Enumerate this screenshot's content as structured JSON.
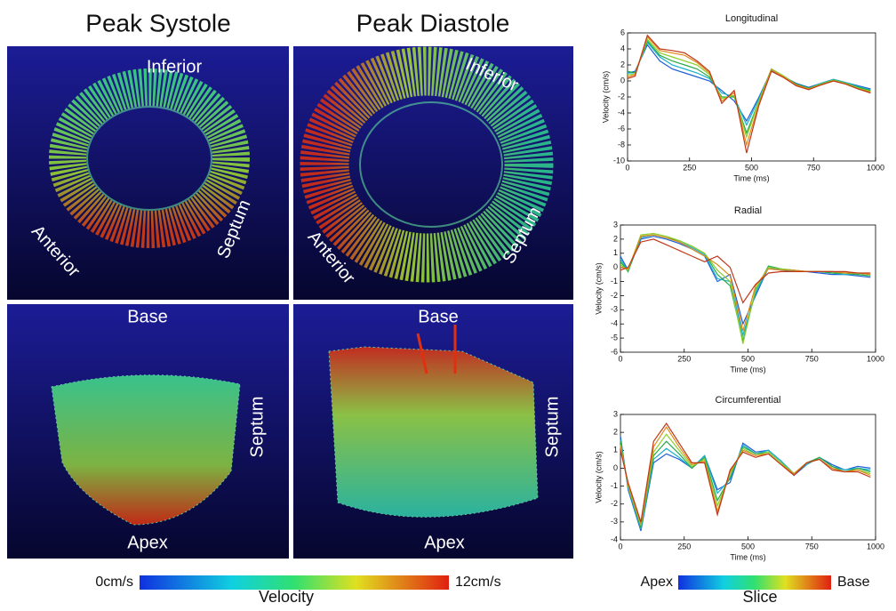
{
  "panels": {
    "systole_title": "Peak Systole",
    "diastole_title": "Peak Diastole",
    "systole_short": {
      "inferior": "Inferior",
      "anterior": "Anterior",
      "septum": "Septum"
    },
    "diastole_short": {
      "inferior": "Inferior",
      "anterior": "Anterior",
      "septum": "Septum"
    },
    "systole_long": {
      "base": "Base",
      "apex": "Apex",
      "septum": "Septum"
    },
    "diastole_long": {
      "base": "Base",
      "apex": "Apex",
      "septum": "Septum"
    }
  },
  "colorbars": {
    "velocity_min": "0cm/s",
    "velocity_max": "12cm/s",
    "velocity_title": "Velocity",
    "slice_min": "Apex",
    "slice_max": "Base",
    "slice_title": "Slice"
  },
  "chart_data": [
    {
      "type": "line",
      "title": "Longitudinal",
      "x_label": "Time (ms)",
      "y_label": "Velocity (cm/s)",
      "x": [
        0,
        30,
        80,
        130,
        180,
        230,
        280,
        330,
        380,
        430,
        480,
        530,
        580,
        630,
        680,
        730,
        780,
        830,
        880,
        930,
        980
      ],
      "xlim": [
        0,
        1000
      ],
      "xticks": [
        0,
        250,
        500,
        750,
        1000
      ],
      "ylim": [
        -10,
        6
      ],
      "yticks": [
        -10,
        -8,
        -6,
        -4,
        -2,
        0,
        2,
        4,
        6
      ],
      "series": [
        {
          "color": "#1f5fd6",
          "values": [
            1.0,
            1.2,
            4.5,
            2.5,
            1.5,
            1.0,
            0.5,
            0.0,
            -1.2,
            -2.5,
            -5.0,
            -2.0,
            1.3,
            0.5,
            -0.3,
            -0.8,
            -0.3,
            0.2,
            -0.2,
            -0.6,
            -1.0
          ]
        },
        {
          "color": "#18b0c8",
          "values": [
            1.0,
            1.0,
            4.8,
            3.0,
            2.0,
            1.5,
            1.0,
            0.3,
            -1.5,
            -2.0,
            -5.5,
            -2.2,
            1.4,
            0.5,
            -0.4,
            -0.9,
            -0.3,
            0.2,
            -0.2,
            -0.7,
            -1.1
          ]
        },
        {
          "color": "#2aa84a",
          "values": [
            1.2,
            1.0,
            5.0,
            3.2,
            2.5,
            2.0,
            1.5,
            0.5,
            -2.0,
            -2.0,
            -6.5,
            -2.5,
            1.5,
            0.6,
            -0.4,
            -0.9,
            -0.4,
            0.1,
            -0.3,
            -0.8,
            -1.2
          ]
        },
        {
          "color": "#8ccf2a",
          "values": [
            0.8,
            0.8,
            5.2,
            3.5,
            3.0,
            2.5,
            2.0,
            0.8,
            -2.2,
            -1.8,
            -7.0,
            -2.5,
            1.5,
            0.6,
            -0.5,
            -1.0,
            -0.4,
            0.1,
            -0.3,
            -0.9,
            -1.3
          ]
        },
        {
          "color": "#e08a1a",
          "values": [
            0.5,
            0.8,
            5.5,
            3.8,
            3.5,
            3.2,
            2.3,
            1.0,
            -2.5,
            -1.5,
            -8.0,
            -2.8,
            1.4,
            0.5,
            -0.5,
            -1.0,
            -0.5,
            0.0,
            -0.4,
            -1.0,
            -1.4
          ]
        },
        {
          "color": "#c0381a",
          "values": [
            0.3,
            0.6,
            5.7,
            4.0,
            3.8,
            3.5,
            2.5,
            1.2,
            -2.8,
            -1.2,
            -9.0,
            -3.0,
            1.2,
            0.4,
            -0.6,
            -1.1,
            -0.5,
            0.0,
            -0.4,
            -1.0,
            -1.5
          ]
        }
      ]
    },
    {
      "type": "line",
      "title": "Radial",
      "x_label": "Time (ms)",
      "y_label": "Velocity (cm/s)",
      "x": [
        0,
        30,
        80,
        130,
        180,
        230,
        280,
        330,
        380,
        430,
        480,
        530,
        580,
        630,
        680,
        730,
        780,
        830,
        880,
        930,
        980
      ],
      "xlim": [
        0,
        1000
      ],
      "xticks": [
        0,
        250,
        500,
        750,
        1000
      ],
      "ylim": [
        -6,
        3
      ],
      "yticks": [
        -6,
        -5,
        -4,
        -3,
        -2,
        -1,
        0,
        1,
        2,
        3
      ],
      "series": [
        {
          "color": "#1f5fd6",
          "values": [
            0.8,
            -0.2,
            2.0,
            2.2,
            2.0,
            1.7,
            1.3,
            0.8,
            -1.0,
            -0.5,
            -4.0,
            -2.0,
            0.0,
            -0.2,
            -0.3,
            -0.3,
            -0.4,
            -0.5,
            -0.5,
            -0.6,
            -0.7
          ]
        },
        {
          "color": "#18b0c8",
          "values": [
            0.6,
            -0.3,
            2.1,
            2.3,
            2.1,
            1.8,
            1.4,
            0.9,
            -0.8,
            -1.0,
            -4.8,
            -1.8,
            0.0,
            -0.1,
            -0.3,
            -0.3,
            -0.3,
            -0.4,
            -0.5,
            -0.5,
            -0.6
          ]
        },
        {
          "color": "#2aa84a",
          "values": [
            0.4,
            -0.3,
            2.2,
            2.3,
            2.1,
            1.9,
            1.5,
            1.0,
            -0.5,
            -1.3,
            -5.2,
            -1.6,
            0.1,
            -0.1,
            -0.2,
            -0.3,
            -0.3,
            -0.4,
            -0.4,
            -0.5,
            -0.6
          ]
        },
        {
          "color": "#8ccf2a",
          "values": [
            0.2,
            -0.2,
            2.3,
            2.4,
            2.2,
            1.9,
            1.5,
            1.0,
            -0.2,
            -1.0,
            -5.4,
            -1.5,
            0.0,
            -0.1,
            -0.2,
            -0.3,
            -0.3,
            -0.3,
            -0.4,
            -0.4,
            -0.5
          ]
        },
        {
          "color": "#e08a1a",
          "values": [
            0.0,
            -0.1,
            2.2,
            2.3,
            2.1,
            1.8,
            1.3,
            0.8,
            0.2,
            -0.6,
            -4.5,
            -1.3,
            -0.1,
            -0.2,
            -0.2,
            -0.3,
            -0.3,
            -0.3,
            -0.4,
            -0.4,
            -0.5
          ]
        },
        {
          "color": "#c0381a",
          "values": [
            -0.2,
            0.0,
            1.8,
            2.0,
            1.6,
            1.2,
            0.8,
            0.4,
            0.8,
            0.0,
            -2.5,
            -1.2,
            -0.4,
            -0.3,
            -0.3,
            -0.3,
            -0.3,
            -0.3,
            -0.3,
            -0.4,
            -0.4
          ]
        }
      ]
    },
    {
      "type": "line",
      "title": "Circumferential",
      "x_label": "Time (ms)",
      "y_label": "Velocity (cm/s)",
      "x": [
        0,
        30,
        80,
        130,
        180,
        230,
        280,
        330,
        380,
        430,
        480,
        530,
        580,
        630,
        680,
        730,
        780,
        830,
        880,
        930,
        980
      ],
      "xlim": [
        0,
        1000
      ],
      "xticks": [
        0,
        250,
        500,
        750,
        1000
      ],
      "ylim": [
        -4,
        3
      ],
      "yticks": [
        -4,
        -3,
        -2,
        -1,
        0,
        1,
        2,
        3
      ],
      "series": [
        {
          "color": "#1f5fd6",
          "values": [
            1.8,
            -1.2,
            -3.5,
            0.3,
            0.8,
            0.5,
            0.0,
            0.7,
            -1.2,
            -0.8,
            1.4,
            0.9,
            1.0,
            0.4,
            -0.4,
            0.2,
            0.6,
            0.2,
            -0.1,
            0.1,
            0.0
          ]
        },
        {
          "color": "#18b0c8",
          "values": [
            1.6,
            -1.1,
            -3.4,
            0.5,
            1.1,
            0.6,
            0.0,
            0.7,
            -1.4,
            -0.6,
            1.3,
            0.8,
            1.0,
            0.4,
            -0.3,
            0.2,
            0.6,
            0.1,
            -0.1,
            0.0,
            -0.1
          ]
        },
        {
          "color": "#2aa84a",
          "values": [
            1.5,
            -1.0,
            -3.3,
            0.7,
            1.5,
            0.8,
            0.0,
            0.6,
            -1.8,
            -0.5,
            1.2,
            0.8,
            0.9,
            0.3,
            -0.3,
            0.3,
            0.6,
            0.1,
            -0.2,
            0.0,
            -0.2
          ]
        },
        {
          "color": "#8ccf2a",
          "values": [
            1.3,
            -1.0,
            -3.2,
            0.9,
            1.9,
            1.0,
            0.1,
            0.5,
            -2.1,
            -0.3,
            1.1,
            0.7,
            0.9,
            0.3,
            -0.3,
            0.3,
            0.5,
            0.0,
            -0.2,
            -0.1,
            -0.3
          ]
        },
        {
          "color": "#e08a1a",
          "values": [
            1.2,
            -0.9,
            -3.1,
            1.2,
            2.3,
            1.2,
            0.2,
            0.4,
            -2.4,
            -0.2,
            1.0,
            0.7,
            0.8,
            0.2,
            -0.3,
            0.3,
            0.5,
            0.0,
            -0.2,
            -0.1,
            -0.4
          ]
        },
        {
          "color": "#c0381a",
          "values": [
            1.0,
            -0.8,
            -3.0,
            1.5,
            2.5,
            1.4,
            0.3,
            0.3,
            -2.6,
            -0.1,
            0.9,
            0.6,
            0.8,
            0.2,
            -0.4,
            0.3,
            0.5,
            -0.1,
            -0.2,
            -0.2,
            -0.5
          ]
        }
      ]
    }
  ]
}
